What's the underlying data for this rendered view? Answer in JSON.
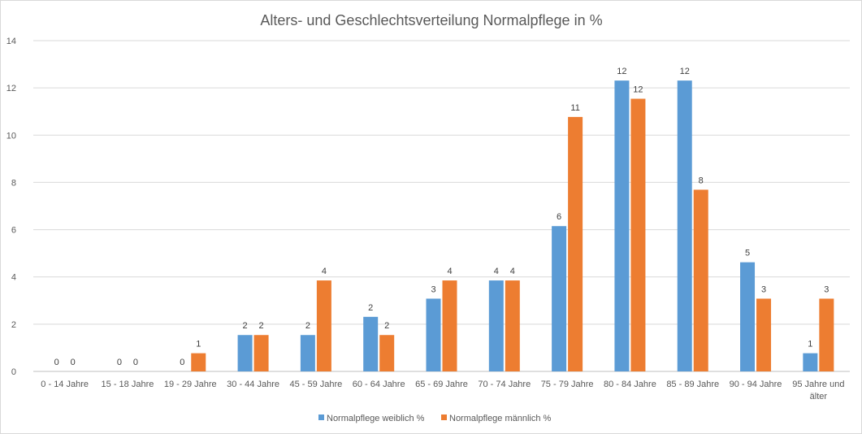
{
  "chart_data": {
    "type": "bar",
    "title": "Alters- und Geschlechtsverteilung Normalpflege in %",
    "xlabel": "",
    "ylabel": "",
    "ylim": [
      0,
      14
    ],
    "yticks": [
      "0",
      "2",
      "4",
      "6",
      "8",
      "10",
      "12",
      "14"
    ],
    "grid": true,
    "legend_position": "bottom",
    "categories": [
      [
        "0 - 14 Jahre"
      ],
      [
        "15 - 18 Jahre"
      ],
      [
        "19 - 29 Jahre"
      ],
      [
        "30 - 44 Jahre"
      ],
      [
        "45 - 59 Jahre"
      ],
      [
        "60 - 64 Jahre"
      ],
      [
        "65 - 69 Jahre"
      ],
      [
        "70 - 74 Jahre"
      ],
      [
        "75 - 79 Jahre"
      ],
      [
        "80 - 84 Jahre"
      ],
      [
        "85 - 89 Jahre"
      ],
      [
        "90 - 94 Jahre"
      ],
      [
        "95 Jahre und",
        "älter"
      ]
    ],
    "series": [
      {
        "name": "Normalpflege weiblich %",
        "color": "#5b9bd5",
        "values": [
          0,
          0,
          0,
          1.54,
          1.54,
          2.31,
          3.08,
          3.85,
          6.15,
          12.31,
          12.31,
          4.62,
          0.77
        ],
        "labels": [
          "0",
          "0",
          "0",
          "2",
          "2",
          "2",
          "3",
          "4",
          "6",
          "12",
          "12",
          "5",
          "1"
        ]
      },
      {
        "name": "Normalpflege männlich %",
        "color": "#ed7d31",
        "values": [
          0,
          0,
          0.77,
          1.54,
          3.85,
          1.54,
          3.85,
          3.85,
          10.77,
          11.54,
          7.69,
          3.08,
          3.08
        ],
        "labels": [
          "0",
          "0",
          "1",
          "2",
          "4",
          "2",
          "4",
          "4",
          "11",
          "12",
          "8",
          "3",
          "3"
        ]
      }
    ]
  }
}
